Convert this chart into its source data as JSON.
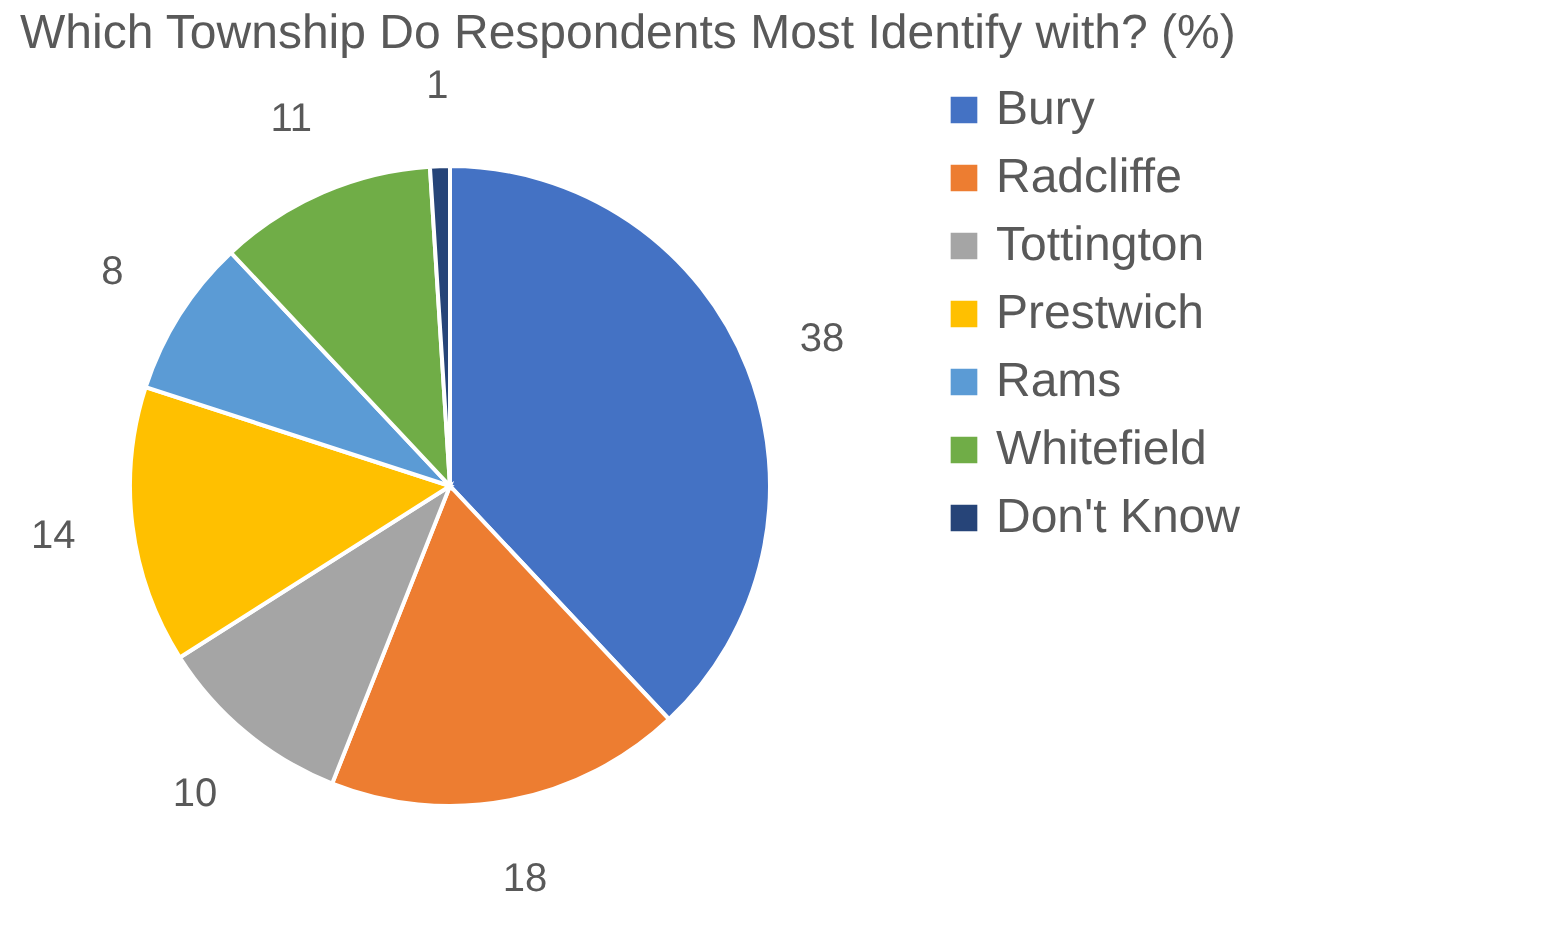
{
  "chart_data": {
    "type": "pie",
    "title": "Which Township Do Respondents Most Identify with? (%)",
    "categories": [
      "Bury",
      "Radcliffe",
      "Tottington",
      "Prestwich",
      "Rams",
      "Whitefield",
      "Don't Know"
    ],
    "values": [
      38,
      18,
      10,
      14,
      8,
      11,
      1
    ],
    "colors": [
      "#4472c4",
      "#ed7d31",
      "#a5a5a5",
      "#ffc000",
      "#5b9bd5",
      "#70ad47",
      "#264478"
    ],
    "data_labels": true,
    "legend": "right"
  }
}
